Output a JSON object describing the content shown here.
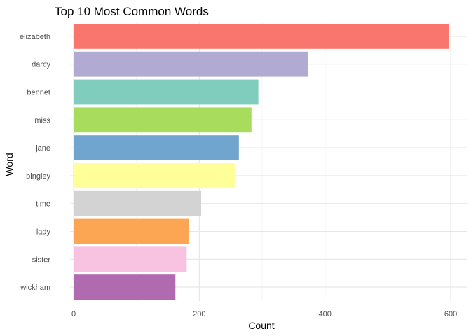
{
  "chart_data": {
    "type": "bar",
    "orientation": "horizontal",
    "title": "Top 10 Most Common Words",
    "xlabel": "Count",
    "ylabel": "Word",
    "categories": [
      "elizabeth",
      "darcy",
      "bennet",
      "miss",
      "jane",
      "bingley",
      "time",
      "lady",
      "sister",
      "wickham"
    ],
    "values": [
      597,
      373,
      294,
      283,
      263,
      257,
      203,
      183,
      180,
      162
    ],
    "colors": [
      "#F8766D",
      "#B1ABD3",
      "#80CDBE",
      "#A7DC5C",
      "#6FA5CE",
      "#FFFF99",
      "#D3D3D3",
      "#FCA653",
      "#F8C3E1",
      "#B06BB0"
    ],
    "xlim": [
      0,
      625
    ],
    "xticks": [
      0,
      200,
      400,
      600
    ],
    "grid": true,
    "legend": "none"
  }
}
